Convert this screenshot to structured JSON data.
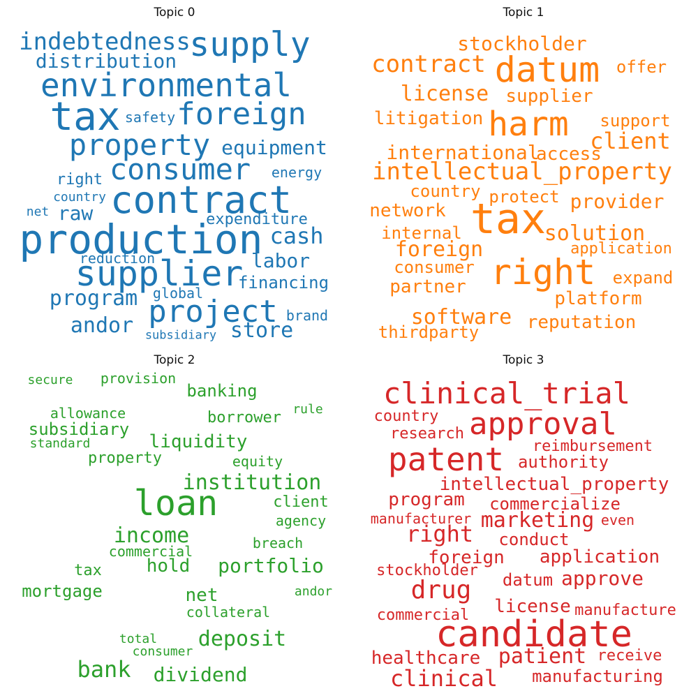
{
  "colors": {
    "topic0": "#1f77b4",
    "topic1": "#ff7f0e",
    "topic2": "#2ca02c",
    "topic3": "#d62728"
  },
  "topics": [
    {
      "title": "Topic 0",
      "words": [
        "indebtedness",
        "supply",
        "distribution",
        "environmental",
        "tax",
        "foreign",
        "safety",
        "property",
        "equipment",
        "consumer",
        "right",
        "energy",
        "country",
        "contract",
        "net",
        "raw",
        "expenditure",
        "production",
        "cash",
        "reduction",
        "labor",
        "supplier",
        "financing",
        "global",
        "program",
        "project",
        "brand",
        "andor",
        "store",
        "subsidiary"
      ]
    },
    {
      "title": "Topic 1",
      "words": [
        "stockholder",
        "contract",
        "datum",
        "offer",
        "license",
        "supplier",
        "litigation",
        "harm",
        "support",
        "client",
        "international",
        "access",
        "intellectual_property",
        "country",
        "protect",
        "provider",
        "network",
        "tax",
        "internal",
        "solution",
        "foreign",
        "application",
        "consumer",
        "right",
        "partner",
        "expand",
        "platform",
        "software",
        "reputation",
        "thirdparty"
      ]
    },
    {
      "title": "Topic 2",
      "words": [
        "secure",
        "provision",
        "banking",
        "rule",
        "allowance",
        "borrower",
        "subsidiary",
        "standard",
        "liquidity",
        "property",
        "equity",
        "loan",
        "institution",
        "client",
        "agency",
        "income",
        "breach",
        "commercial",
        "hold",
        "portfolio",
        "tax",
        "mortgage",
        "net",
        "andor",
        "collateral",
        "deposit",
        "total",
        "consumer",
        "bank",
        "dividend"
      ]
    },
    {
      "title": "Topic 3",
      "words": [
        "clinical_trial",
        "country",
        "approval",
        "research",
        "reimbursement",
        "patent",
        "authority",
        "intellectual_property",
        "program",
        "commercialize",
        "manufacturer",
        "marketing",
        "even",
        "right",
        "conduct",
        "foreign",
        "application",
        "stockholder",
        "datum",
        "approve",
        "drug",
        "license",
        "manufacture",
        "commercial",
        "candidate",
        "healthcare",
        "patient",
        "receive",
        "clinical",
        "manufacturing"
      ]
    }
  ]
}
